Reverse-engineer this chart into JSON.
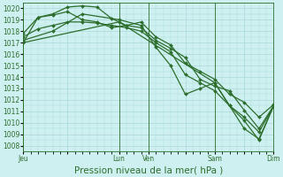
{
  "bg_color": "#cff0f0",
  "grid_color": "#a8d8d8",
  "line_color": "#2d6e2d",
  "marker_color": "#2d6e2d",
  "xlabel": "Pression niveau de la mer( hPa )",
  "ylim": [
    1007.5,
    1020.5
  ],
  "yticks": [
    1008,
    1009,
    1010,
    1011,
    1012,
    1013,
    1014,
    1015,
    1016,
    1017,
    1018,
    1019,
    1020
  ],
  "xtick_labels": [
    "Jeu",
    "",
    "Lun",
    "Ven",
    "",
    "Sam",
    "",
    "Dim"
  ],
  "xtick_positions": [
    0,
    6,
    13,
    17,
    22,
    26,
    30,
    34
  ],
  "vline_positions": [
    0,
    13,
    17,
    26,
    34
  ],
  "x_total": 34,
  "series1": {
    "x": [
      0,
      2,
      4,
      6,
      8,
      10,
      12,
      14,
      16,
      18,
      20,
      22,
      24,
      26,
      28,
      30,
      32,
      34
    ],
    "y": [
      1017.0,
      1019.2,
      1019.5,
      1020.1,
      1020.2,
      1020.1,
      1019.1,
      1018.5,
      1018.3,
      1017.2,
      1016.5,
      1015.7,
      1013.8,
      1013.2,
      1012.8,
      1011.1,
      1009.5,
      1011.5
    ]
  },
  "series2": {
    "x": [
      0,
      2,
      4,
      6,
      8,
      10,
      12,
      14,
      16,
      18,
      20,
      22,
      24,
      26,
      28,
      30,
      32,
      34
    ],
    "y": [
      1017.8,
      1019.2,
      1019.4,
      1019.7,
      1019.0,
      1018.8,
      1018.3,
      1018.5,
      1018.8,
      1017.5,
      1016.8,
      1015.2,
      1014.5,
      1013.8,
      1012.5,
      1011.8,
      1010.5,
      1011.6
    ]
  },
  "series3": {
    "x": [
      0,
      2,
      4,
      6,
      8,
      10,
      12,
      14,
      16,
      18,
      20,
      22,
      24,
      26,
      28,
      30,
      32,
      34
    ],
    "y": [
      1017.5,
      1018.2,
      1018.5,
      1018.8,
      1018.8,
      1018.7,
      1018.5,
      1018.3,
      1018.0,
      1017.0,
      1016.2,
      1014.2,
      1013.5,
      1012.8,
      1011.5,
      1010.5,
      1009.2,
      1011.5
    ]
  },
  "series4": {
    "x": [
      0,
      4,
      8,
      13,
      16,
      18,
      20,
      22,
      24,
      26,
      28,
      30,
      32,
      34
    ],
    "y": [
      1017.2,
      1018.0,
      1019.5,
      1019.0,
      1018.5,
      1016.6,
      1015.0,
      1012.5,
      1013.0,
      1013.5,
      1011.5,
      1010.2,
      1008.5,
      1011.5
    ]
  },
  "series5": {
    "x": [
      0,
      13,
      26,
      30,
      32,
      34
    ],
    "y": [
      1017.0,
      1018.8,
      1013.5,
      1009.5,
      1008.6,
      1011.5
    ]
  },
  "tick_fontsize": 5.5,
  "label_fontsize": 7.5,
  "lw": 0.9,
  "ms": 2.0
}
